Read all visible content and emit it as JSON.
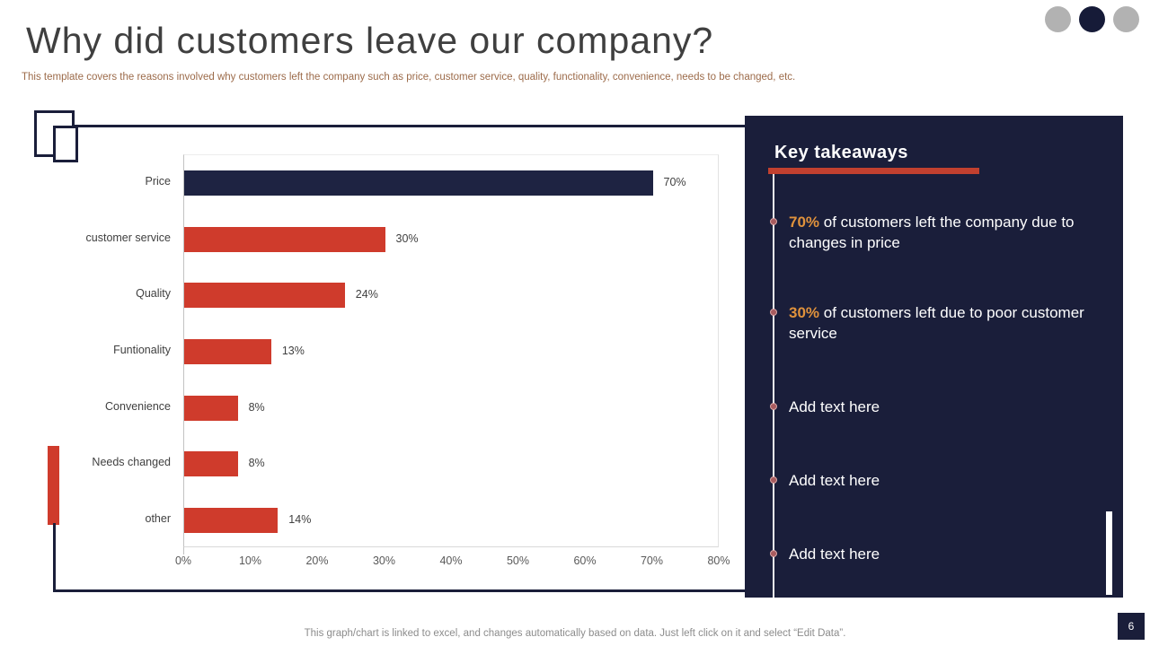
{
  "slide": {
    "title": "Why did customers leave our company?",
    "subtitle": "This template covers the reasons involved why customers left the company such as price, customer service, quality, functionality, convenience, needs to be changed, etc.",
    "footer": "This graph/chart is linked to excel,  and changes automatically based on data. Just left click on it and select “Edit Data”.",
    "page_number": "6"
  },
  "colors": {
    "accent_red": "#cf3b2c",
    "navy": "#1a1e3a",
    "price_bar_navy": "#1e2342",
    "highlight_orange": "#e0923c",
    "dot_gray": "#b2b2b2"
  },
  "chart_data": {
    "type": "bar",
    "orientation": "horizontal",
    "title": "",
    "xlabel": "",
    "ylabel": "",
    "categories": [
      "Price",
      "customer service",
      "Quality",
      "Funtionality",
      "Convenience",
      "Needs changed",
      "other"
    ],
    "values": [
      70,
      30,
      24,
      13,
      8,
      8,
      14
    ],
    "value_labels": [
      "70%",
      "30%",
      "24%",
      "13%",
      "8%",
      "8%",
      "14%"
    ],
    "bar_colors": [
      "#1e2342",
      "#cf3b2c",
      "#cf3b2c",
      "#cf3b2c",
      "#cf3b2c",
      "#cf3b2c",
      "#cf3b2c"
    ],
    "xlim": [
      0,
      80
    ],
    "x_ticks": [
      "0%",
      "10%",
      "20%",
      "30%",
      "40%",
      "50%",
      "60%",
      "70%",
      "80%"
    ],
    "grid": false,
    "legend": false
  },
  "takeaways": {
    "heading": "Key takeaways",
    "items": [
      {
        "highlight": "70%",
        "text": " of customers left the company due to changes in price"
      },
      {
        "highlight": "30%",
        "text": " of customers left due to poor customer service"
      },
      {
        "highlight": "",
        "text": "Add text here"
      },
      {
        "highlight": "",
        "text": "Add text here"
      },
      {
        "highlight": "",
        "text": "Add text here"
      }
    ]
  }
}
